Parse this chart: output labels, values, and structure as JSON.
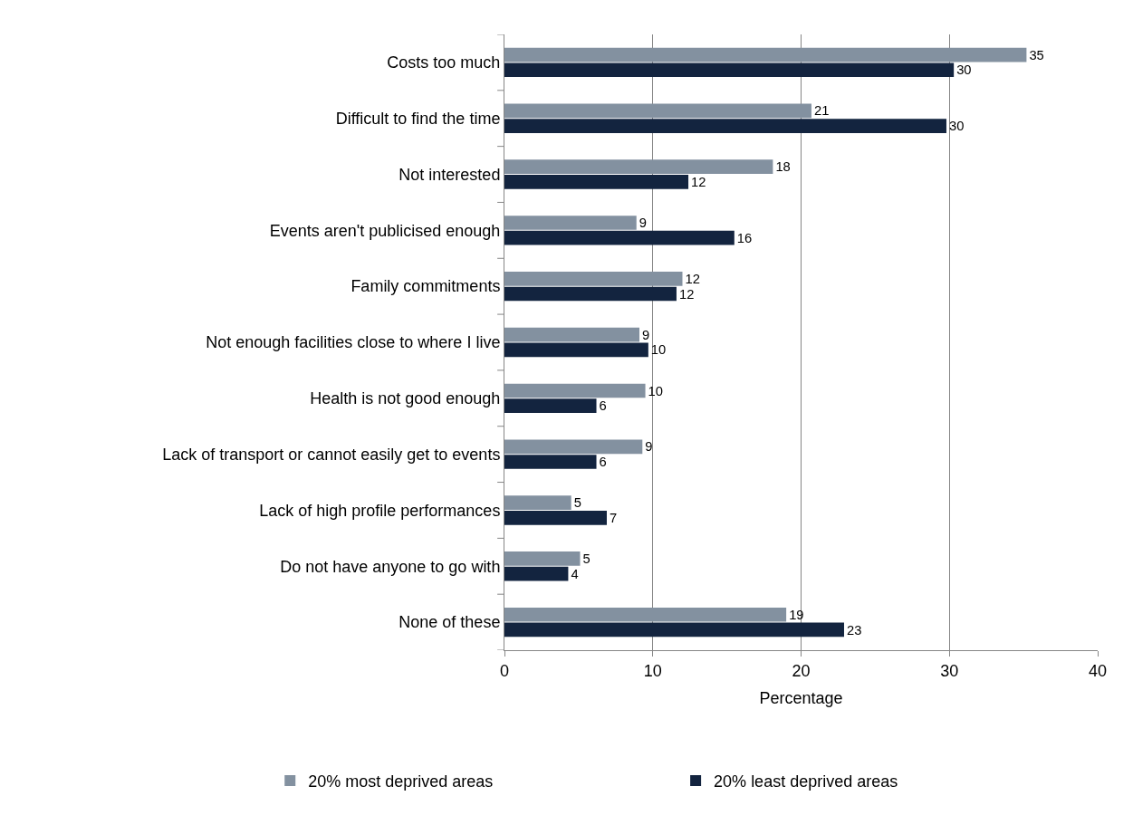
{
  "chart_data": {
    "type": "bar",
    "orientation": "horizontal",
    "xlabel": "Percentage",
    "categories": [
      "Costs too much",
      "Difficult to find the time",
      "Not interested",
      "Events aren't publicised enough",
      "Family commitments",
      "Not enough facilities close to where I live",
      "Health is not good enough",
      "Lack of transport or cannot easily get to events",
      "Lack of high profile performances",
      "Do not have anyone to go with",
      "None of these"
    ],
    "series": [
      {
        "name": "20% most deprived areas",
        "color": "#8391a0",
        "values": [
          35.2,
          20.7,
          18.1,
          8.9,
          12.0,
          9.1,
          9.5,
          9.3,
          4.5,
          5.1,
          19.0
        ],
        "value_labels": [
          "35",
          "21",
          "18",
          "9",
          "12",
          "9",
          "10",
          "9",
          "5",
          "5",
          "19"
        ]
      },
      {
        "name": "20% least deprived areas",
        "color": "#13243f",
        "values": [
          30.3,
          29.8,
          12.4,
          15.5,
          11.6,
          9.7,
          6.2,
          6.2,
          6.9,
          4.3,
          22.9
        ],
        "value_labels": [
          "30",
          "30",
          "12",
          "16",
          "12",
          "10",
          "6",
          "6",
          "7",
          "4",
          "23"
        ]
      }
    ],
    "xlim": [
      0,
      40
    ],
    "xticks": [
      0,
      10,
      20,
      30,
      40
    ],
    "grid": "x",
    "legend": "bottom"
  }
}
